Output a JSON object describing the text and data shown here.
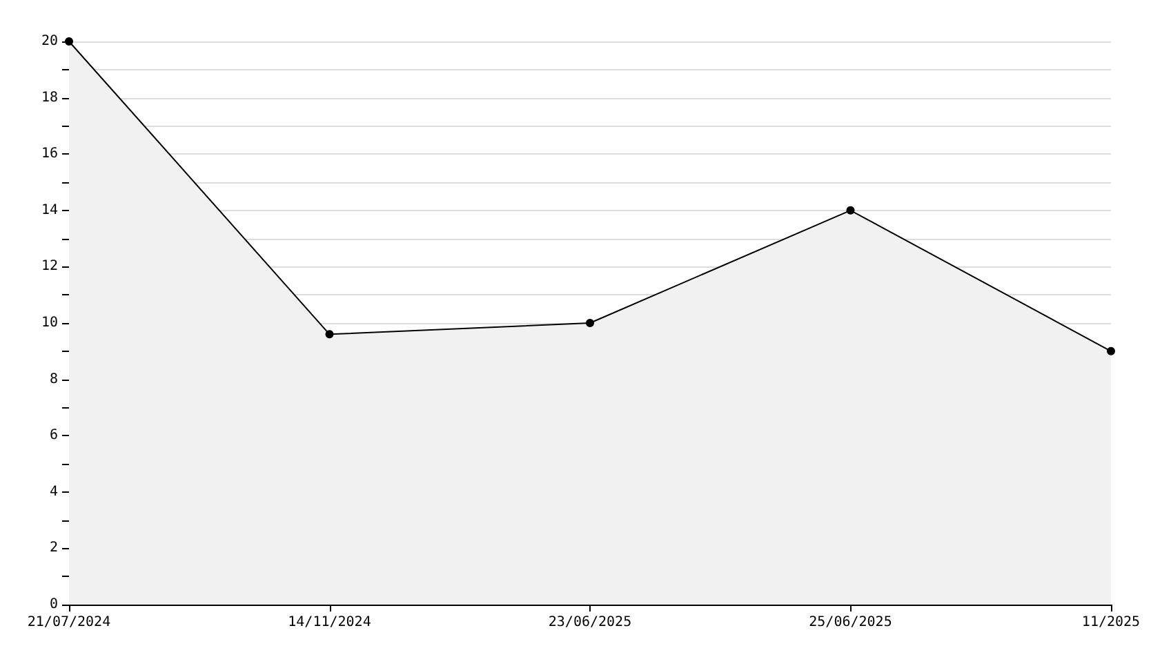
{
  "chart_data": {
    "type": "area",
    "categories": [
      "21/07/2024",
      "14/11/2024",
      "23/06/2025",
      "25/06/2025",
      "11/2025"
    ],
    "series": [
      {
        "color": "#000000",
        "values": [
          20,
          9.6,
          10,
          14,
          9
        ]
      }
    ],
    "ylim": [
      0,
      20
    ],
    "yticks": [
      0,
      2,
      4,
      6,
      8,
      10,
      12,
      14,
      16,
      18,
      20
    ],
    "grid": "y",
    "marker": "circle",
    "line_style": "solid"
  }
}
